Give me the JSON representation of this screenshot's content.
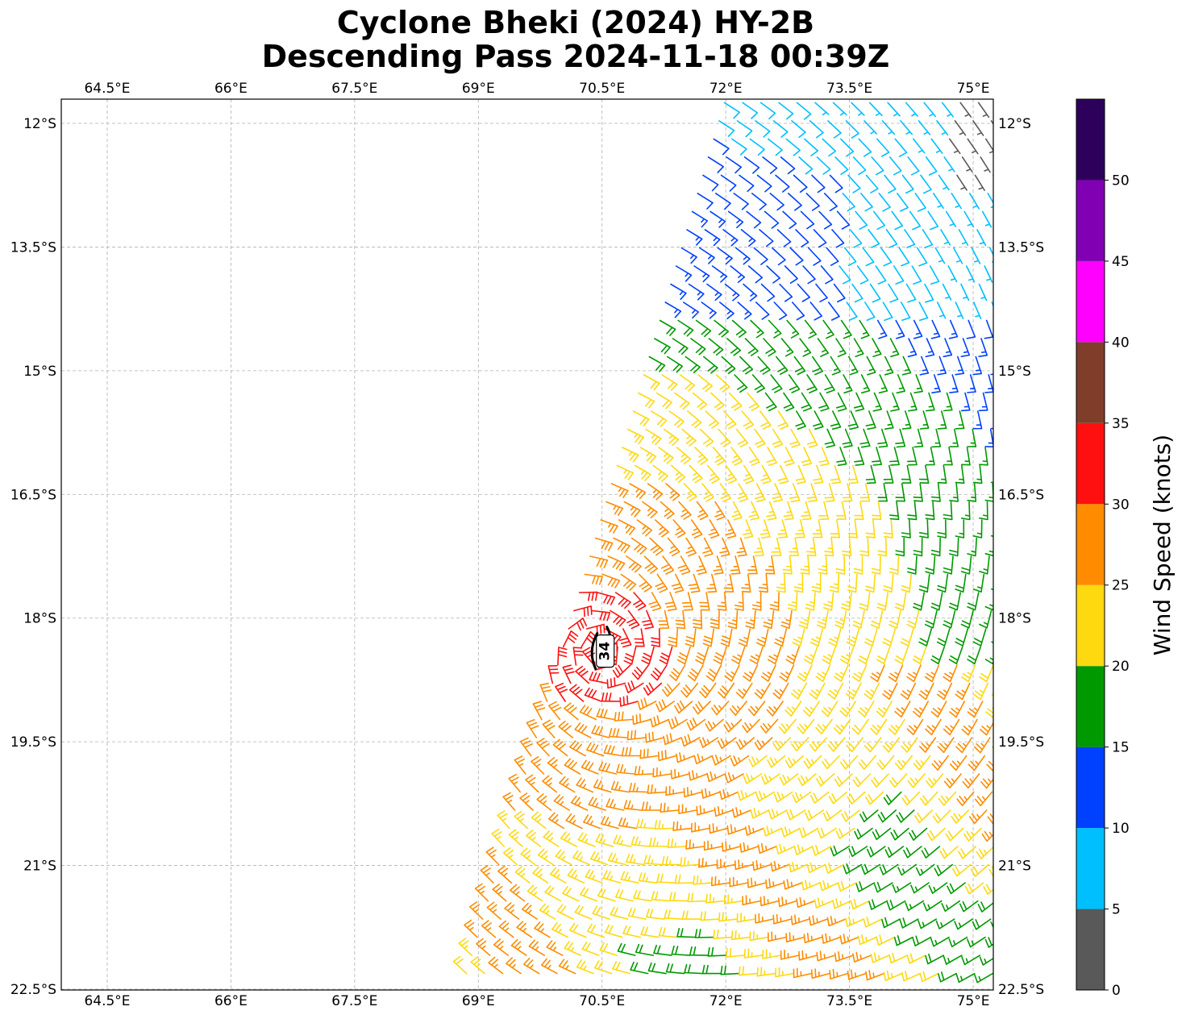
{
  "title": {
    "line1": "Cyclone Bheki (2024) HY-2B",
    "line2": "Descending Pass 2024-11-18 00:39Z"
  },
  "chart_data": {
    "type": "wind-barb-map",
    "lon_range": [
      64.2,
      75.5
    ],
    "lat_range": [
      -22.5,
      -11.7
    ],
    "x_ticks": [
      {
        "value": 64.5,
        "label": "64.5°E"
      },
      {
        "value": 66,
        "label": "66°E"
      },
      {
        "value": 67.5,
        "label": "67.5°E"
      },
      {
        "value": 69,
        "label": "69°E"
      },
      {
        "value": 70.5,
        "label": "70.5°E"
      },
      {
        "value": 72,
        "label": "72°E"
      },
      {
        "value": 73.5,
        "label": "73.5°E"
      },
      {
        "value": 75,
        "label": "75°E"
      }
    ],
    "y_ticks": [
      {
        "value": -12,
        "label": "12°S"
      },
      {
        "value": -13.5,
        "label": "13.5°S"
      },
      {
        "value": -15,
        "label": "15°S"
      },
      {
        "value": -16.5,
        "label": "16.5°S"
      },
      {
        "value": -18,
        "label": "18°S"
      },
      {
        "value": -19.5,
        "label": "19.5°S"
      },
      {
        "value": -21,
        "label": "21°S"
      },
      {
        "value": -22.5,
        "label": "22.5°S"
      }
    ],
    "grid": true,
    "swath": {
      "corners": [
        [
          72.0,
          -11.7
        ],
        [
          75.5,
          -11.7
        ],
        [
          75.5,
          -22.5
        ],
        [
          68.8,
          -22.5
        ]
      ]
    },
    "center": {
      "lon": 70.5,
      "lat": -18.4,
      "label": "34"
    },
    "colorbar": {
      "label": "Wind Speed (knots)",
      "bounds": [
        0,
        5,
        10,
        15,
        20,
        25,
        30,
        35,
        40,
        45,
        50,
        55
      ],
      "tick_labels": [
        "0",
        "5",
        "10",
        "15",
        "20",
        "25",
        "30",
        "35",
        "40",
        "45",
        "50"
      ],
      "colors": [
        "#595959",
        "#00bfff",
        "#0040ff",
        "#009900",
        "#ffd90f",
        "#ff8c00",
        "#ff1010",
        "#803d2a",
        "#ff00ff",
        "#8000b3",
        "#2d005c"
      ]
    }
  }
}
